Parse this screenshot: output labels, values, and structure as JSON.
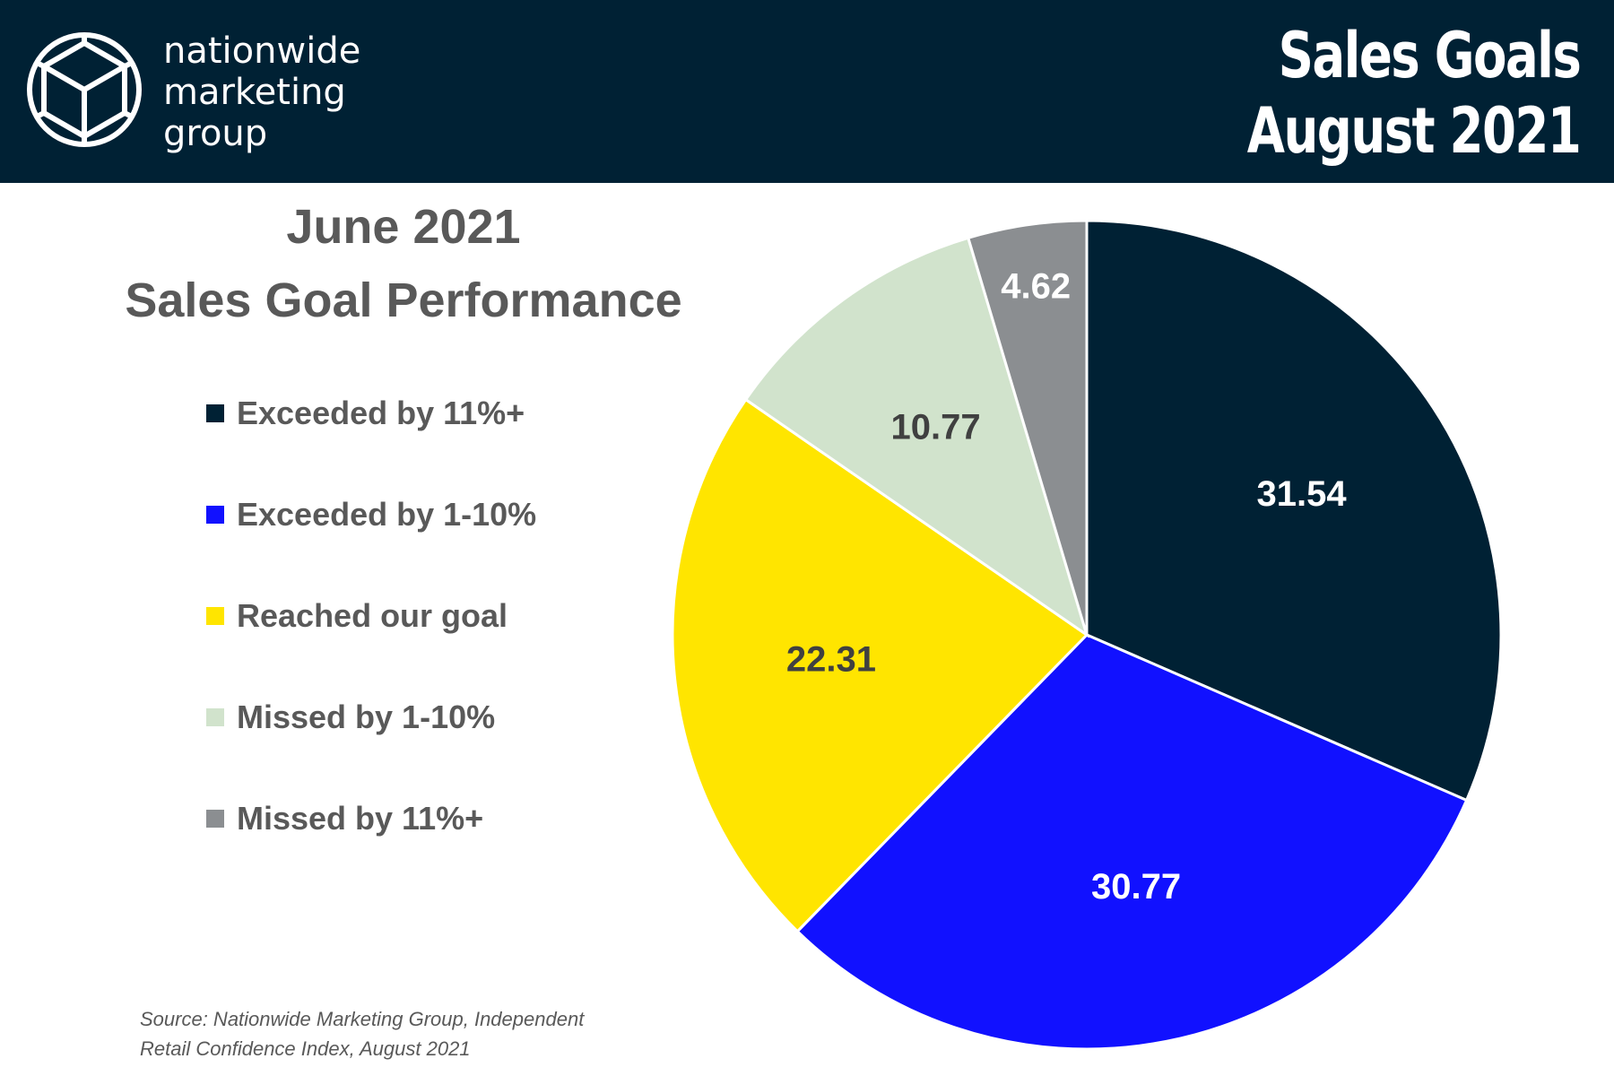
{
  "header": {
    "logo_lines": [
      "nationwide",
      "marketing",
      "group"
    ],
    "title_lines": [
      "Sales Goals",
      "August 2021"
    ]
  },
  "chart_data": {
    "type": "pie",
    "title_lines": [
      "June 2021",
      "Sales Goal Performance"
    ],
    "slices": [
      {
        "label": "Exceeded by 11%+",
        "value": 31.54,
        "color": "#002134",
        "label_color": "#ffffff"
      },
      {
        "label": "Exceeded by 1-10%",
        "value": 30.77,
        "color": "#1111ff",
        "label_color": "#ffffff"
      },
      {
        "label": "Reached our goal",
        "value": 22.31,
        "color": "#ffe500",
        "label_color": "#404040"
      },
      {
        "label": "Missed by 1-10%",
        "value": 10.77,
        "color": "#d1e3cc",
        "label_color": "#404040"
      },
      {
        "label": "Missed by 11%+",
        "value": 4.62,
        "color": "#8b8e91",
        "label_color": "#ffffff"
      }
    ],
    "legend_placement": "left"
  },
  "source_lines": [
    "Source: Nationwide Marketing Group, Independent",
    "Retail Confidence Index, August 2021"
  ]
}
